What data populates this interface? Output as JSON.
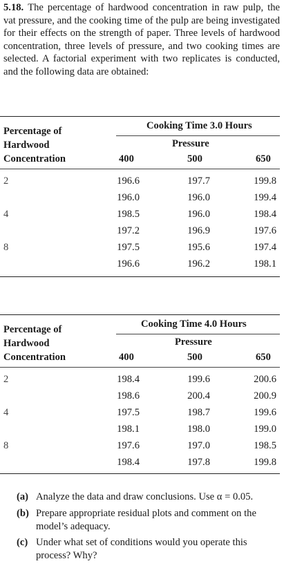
{
  "problem": {
    "number": "5.18.",
    "text": "The percentage of hardwood concentration in raw pulp, the vat pressure, and the cooking time of the pulp are being investigated for their effects on the strength of paper. Three levels of hardwood concentration, three levels of pressure, and two cooking times are selected. A factorial experiment with two replicates is conducted, and the following data are obtained:"
  },
  "table1": {
    "cooking_time": "Cooking Time 3.0 Hours",
    "pressure_label": "Pressure",
    "row_label": [
      "Percentage of",
      "Hardwood",
      "Concentration"
    ],
    "pressures": [
      "400",
      "500",
      "650"
    ],
    "groups": [
      {
        "level": "2",
        "rows": [
          [
            "196.6",
            "197.7",
            "199.8"
          ],
          [
            "196.0",
            "196.0",
            "199.4"
          ]
        ]
      },
      {
        "level": "4",
        "rows": [
          [
            "198.5",
            "196.0",
            "198.4"
          ],
          [
            "197.2",
            "196.9",
            "197.6"
          ]
        ]
      },
      {
        "level": "8",
        "rows": [
          [
            "197.5",
            "195.6",
            "197.4"
          ],
          [
            "196.6",
            "196.2",
            "198.1"
          ]
        ]
      }
    ]
  },
  "table2": {
    "cooking_time": "Cooking Time 4.0 Hours",
    "pressure_label": "Pressure",
    "row_label": [
      "Percentage of",
      "Hardwood",
      "Concentration"
    ],
    "pressures": [
      "400",
      "500",
      "650"
    ],
    "groups": [
      {
        "level": "2",
        "rows": [
          [
            "198.4",
            "199.6",
            "200.6"
          ],
          [
            "198.6",
            "200.4",
            "200.9"
          ]
        ]
      },
      {
        "level": "4",
        "rows": [
          [
            "197.5",
            "198.7",
            "199.6"
          ],
          [
            "198.1",
            "198.0",
            "199.0"
          ]
        ]
      },
      {
        "level": "8",
        "rows": [
          [
            "197.6",
            "197.0",
            "198.5"
          ],
          [
            "198.4",
            "197.8",
            "199.8"
          ]
        ]
      }
    ]
  },
  "questions": [
    {
      "label": "(a)",
      "text": "Analyze the data and draw conclusions. Use α = 0.05."
    },
    {
      "label": "(b)",
      "text": "Prepare appropriate residual plots and comment on the model’s adequacy."
    },
    {
      "label": "(c)",
      "text": "Under what set of conditions would you operate this process? Why?"
    }
  ]
}
